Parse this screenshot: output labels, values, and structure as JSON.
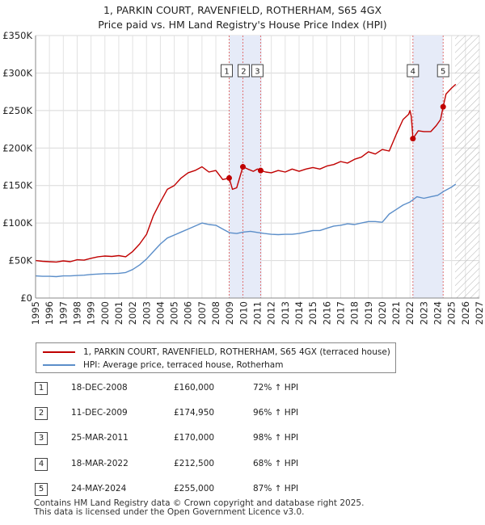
{
  "title": {
    "line1": "1, PARKIN COURT, RAVENFIELD, ROTHERHAM, S65 4GX",
    "line2": "Price paid vs. HM Land Registry's House Price Index (HPI)"
  },
  "colors": {
    "property": "#c00000",
    "hpi": "#5b8ec9",
    "shade": "#e6ebf8",
    "hatch": "#b0b0b0",
    "marker_line": "#e07070"
  },
  "chart_data": {
    "type": "line",
    "title": "Price paid vs. HM Land Registry's House Price Index (HPI)",
    "xlabel": "",
    "ylabel": "",
    "xlim": [
      1995,
      2027
    ],
    "ylim": [
      0,
      350000
    ],
    "y_ticks": [
      0,
      50000,
      100000,
      150000,
      200000,
      250000,
      300000,
      350000
    ],
    "y_tick_labels": [
      "£0",
      "£50K",
      "£100K",
      "£150K",
      "£200K",
      "£250K",
      "£300K",
      "£350K"
    ],
    "x_ticks": [
      1995,
      1996,
      1997,
      1998,
      1999,
      2000,
      2001,
      2002,
      2003,
      2004,
      2005,
      2006,
      2007,
      2008,
      2009,
      2010,
      2011,
      2012,
      2013,
      2014,
      2015,
      2016,
      2017,
      2018,
      2019,
      2020,
      2021,
      2022,
      2023,
      2024,
      2025,
      2026,
      2027
    ],
    "grid": true,
    "shaded_range": [
      2009.0,
      2011.3
    ],
    "shaded_range_2": [
      2022.2,
      2024.4
    ],
    "future_hatch_from": 2025.25,
    "series": [
      {
        "name": "1, PARKIN COURT, RAVENFIELD, ROTHERHAM, S65 4GX (terraced house)",
        "color": "#c00000",
        "x": [
          1995.0,
          1995.5,
          1996.0,
          1996.5,
          1997.0,
          1997.5,
          1998.0,
          1998.5,
          1999.0,
          1999.5,
          2000.0,
          2000.5,
          2001.0,
          2001.5,
          2002.0,
          2002.5,
          2003.0,
          2003.5,
          2004.0,
          2004.5,
          2005.0,
          2005.5,
          2006.0,
          2006.5,
          2007.0,
          2007.5,
          2008.0,
          2008.5,
          2008.96,
          2009.2,
          2009.5,
          2009.95,
          2010.3,
          2010.7,
          2011.0,
          2011.23,
          2011.6,
          2012.0,
          2012.5,
          2013.0,
          2013.5,
          2014.0,
          2014.5,
          2015.0,
          2015.5,
          2016.0,
          2016.5,
          2017.0,
          2017.5,
          2018.0,
          2018.5,
          2019.0,
          2019.5,
          2020.0,
          2020.5,
          2021.0,
          2021.5,
          2021.9,
          2022.0,
          2022.1,
          2022.21,
          2022.6,
          2023.0,
          2023.5,
          2023.9,
          2024.2,
          2024.39,
          2024.6,
          2025.0,
          2025.3
        ],
        "values": [
          50000,
          49000,
          48500,
          48000,
          49500,
          48500,
          51000,
          50500,
          53000,
          55000,
          56000,
          55500,
          56500,
          55000,
          62000,
          72000,
          85000,
          110000,
          128000,
          145000,
          150000,
          160000,
          167000,
          170000,
          175000,
          168000,
          170000,
          158000,
          160000,
          145000,
          147000,
          174950,
          172000,
          169000,
          172000,
          170000,
          168000,
          167000,
          170000,
          168000,
          172000,
          169000,
          172000,
          174000,
          172000,
          176000,
          178000,
          182000,
          180000,
          185000,
          188000,
          195000,
          192000,
          198000,
          196000,
          218000,
          238000,
          245000,
          250000,
          242000,
          212500,
          223000,
          222000,
          222000,
          230000,
          238000,
          255000,
          272000,
          280000,
          285000
        ]
      },
      {
        "name": "HPI: Average price, terraced house, Rotherham",
        "color": "#5b8ec9",
        "x": [
          1995.0,
          1995.5,
          1996.0,
          1996.5,
          1997.0,
          1997.5,
          1998.0,
          1998.5,
          1999.0,
          1999.5,
          2000.0,
          2000.5,
          2001.0,
          2001.5,
          2002.0,
          2002.5,
          2003.0,
          2003.5,
          2004.0,
          2004.5,
          2005.0,
          2005.5,
          2006.0,
          2006.5,
          2007.0,
          2007.5,
          2008.0,
          2008.5,
          2009.0,
          2009.5,
          2010.0,
          2010.5,
          2011.0,
          2011.5,
          2012.0,
          2012.5,
          2013.0,
          2013.5,
          2014.0,
          2014.5,
          2015.0,
          2015.5,
          2016.0,
          2016.5,
          2017.0,
          2017.5,
          2018.0,
          2018.5,
          2019.0,
          2019.5,
          2020.0,
          2020.5,
          2021.0,
          2021.5,
          2022.0,
          2022.5,
          2023.0,
          2023.5,
          2024.0,
          2024.5,
          2025.0,
          2025.3
        ],
        "values": [
          29500,
          29000,
          29000,
          28500,
          29500,
          29500,
          30000,
          30500,
          31500,
          32000,
          32500,
          32500,
          33000,
          34000,
          38000,
          44000,
          52000,
          62000,
          72000,
          80000,
          84000,
          88000,
          92000,
          96000,
          100000,
          98000,
          97000,
          92000,
          87000,
          86000,
          88000,
          89000,
          87500,
          86000,
          85000,
          84500,
          85000,
          85000,
          86000,
          88000,
          90000,
          90000,
          93000,
          96000,
          97000,
          99000,
          98000,
          100000,
          102000,
          102000,
          101000,
          112000,
          118000,
          124000,
          128000,
          135000,
          133000,
          135000,
          137000,
          143000,
          148000,
          152000
        ]
      }
    ],
    "sales": [
      {
        "label": "1",
        "x": 2008.96,
        "value": 160000
      },
      {
        "label": "2",
        "x": 2009.95,
        "value": 174950
      },
      {
        "label": "3",
        "x": 2011.23,
        "value": 170000
      },
      {
        "label": "4",
        "x": 2022.21,
        "value": 212500
      },
      {
        "label": "5",
        "x": 2024.39,
        "value": 255000
      }
    ]
  },
  "legend": {
    "property_label": "1, PARKIN COURT, RAVENFIELD, ROTHERHAM, S65 4GX (terraced house)",
    "hpi_label": "HPI: Average price, terraced house, Rotherham"
  },
  "transactions": [
    {
      "num": "1",
      "date": "18-DEC-2008",
      "price": "£160,000",
      "hpi": "72% ↑ HPI"
    },
    {
      "num": "2",
      "date": "11-DEC-2009",
      "price": "£174,950",
      "hpi": "96% ↑ HPI"
    },
    {
      "num": "3",
      "date": "25-MAR-2011",
      "price": "£170,000",
      "hpi": "98% ↑ HPI"
    },
    {
      "num": "4",
      "date": "18-MAR-2022",
      "price": "£212,500",
      "hpi": "68% ↑ HPI"
    },
    {
      "num": "5",
      "date": "24-MAY-2024",
      "price": "£255,000",
      "hpi": "87% ↑ HPI"
    }
  ],
  "footer": {
    "line1": "Contains HM Land Registry data © Crown copyright and database right 2025.",
    "line2": "This data is licensed under the Open Government Licence v3.0."
  }
}
